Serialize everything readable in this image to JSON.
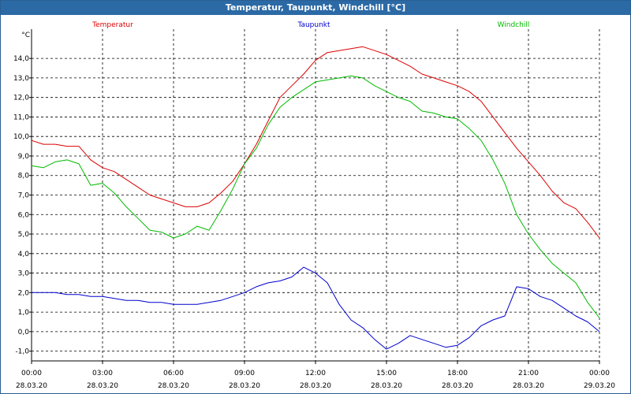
{
  "window": {
    "title": "Temperatur, Taupunkt, Windchill [°C]"
  },
  "chart_data": {
    "type": "line",
    "title": "Temperatur, Taupunkt, Windchill [°C]",
    "ylabel": "°C",
    "ylim": [
      -1.5,
      15.5
    ],
    "yticks": [
      -1.0,
      0.0,
      1.0,
      2.0,
      3.0,
      4.0,
      5.0,
      6.0,
      7.0,
      8.0,
      9.0,
      10.0,
      11.0,
      12.0,
      13.0,
      14.0
    ],
    "ytick_labels": [
      "-1,0",
      "0,0",
      "1,0",
      "2,0",
      "3,0",
      "4,0",
      "5,0",
      "6,0",
      "7,0",
      "8,0",
      "9,0",
      "10,0",
      "11,0",
      "12,0",
      "13,0",
      "14,0"
    ],
    "xlim": [
      0,
      24
    ],
    "xticks": [
      0,
      3,
      6,
      9,
      12,
      15,
      18,
      21,
      24
    ],
    "xtick_labels": [
      {
        "time": "00:00",
        "date": "28.03.20"
      },
      {
        "time": "03:00",
        "date": "28.03.20"
      },
      {
        "time": "06:00",
        "date": "28.03.20"
      },
      {
        "time": "09:00",
        "date": "28.03.20"
      },
      {
        "time": "12:00",
        "date": "28.03.20"
      },
      {
        "time": "15:00",
        "date": "28.03.20"
      },
      {
        "time": "18:00",
        "date": "28.03.20"
      },
      {
        "time": "21:00",
        "date": "28.03.20"
      },
      {
        "time": "00:00",
        "date": "29.03.20"
      }
    ],
    "grid": true,
    "legend_position": "top",
    "series": [
      {
        "name": "Temperatur",
        "color": "#dd0000",
        "x": [
          0,
          0.5,
          1,
          1.5,
          2,
          2.5,
          3,
          3.5,
          4,
          4.5,
          5,
          5.5,
          6,
          6.5,
          7,
          7.5,
          8,
          8.5,
          9,
          9.5,
          10,
          10.5,
          11,
          11.5,
          12,
          12.5,
          13,
          13.5,
          14,
          14.5,
          15,
          15.5,
          16,
          16.5,
          17,
          17.5,
          18,
          18.5,
          19,
          19.5,
          20,
          20.5,
          21,
          21.5,
          22,
          22.5,
          23,
          23.5,
          24
        ],
        "values": [
          9.8,
          9.6,
          9.6,
          9.5,
          9.5,
          8.8,
          8.4,
          8.2,
          7.8,
          7.4,
          7.0,
          6.8,
          6.6,
          6.4,
          6.4,
          6.6,
          7.1,
          7.7,
          8.6,
          9.6,
          10.8,
          12.0,
          12.6,
          13.2,
          13.9,
          14.3,
          14.4,
          14.5,
          14.6,
          14.4,
          14.2,
          13.9,
          13.6,
          13.2,
          13.0,
          12.8,
          12.6,
          12.3,
          11.8,
          11.0,
          10.2,
          9.4,
          8.7,
          8.0,
          7.2,
          6.6,
          6.3,
          5.6,
          4.8
        ]
      },
      {
        "name": "Taupunkt",
        "color": "#0000cc",
        "x": [
          0,
          0.5,
          1,
          1.5,
          2,
          2.5,
          3,
          3.5,
          4,
          4.5,
          5,
          5.5,
          6,
          6.5,
          7,
          7.5,
          8,
          8.5,
          9,
          9.5,
          10,
          10.5,
          11,
          11.5,
          12,
          12.5,
          13,
          13.5,
          14,
          14.5,
          15,
          15.5,
          16,
          16.5,
          17,
          17.5,
          18,
          18.5,
          19,
          19.5,
          20,
          20.5,
          21,
          21.5,
          22,
          22.5,
          23,
          23.5,
          24
        ],
        "values": [
          2.0,
          2.0,
          2.0,
          1.9,
          1.9,
          1.8,
          1.8,
          1.7,
          1.6,
          1.6,
          1.5,
          1.5,
          1.4,
          1.4,
          1.4,
          1.5,
          1.6,
          1.8,
          2.0,
          2.3,
          2.5,
          2.6,
          2.8,
          3.3,
          3.0,
          2.5,
          1.4,
          0.6,
          0.2,
          -0.4,
          -0.9,
          -0.6,
          -0.2,
          -0.4,
          -0.6,
          -0.8,
          -0.7,
          -0.3,
          0.3,
          0.6,
          0.8,
          2.3,
          2.2,
          1.8,
          1.6,
          1.2,
          0.8,
          0.5,
          0.0
        ]
      },
      {
        "name": "Windchill",
        "color": "#00bb00",
        "x": [
          0,
          0.5,
          1,
          1.5,
          2,
          2.5,
          3,
          3.5,
          4,
          4.5,
          5,
          5.5,
          6,
          6.5,
          7,
          7.5,
          8,
          8.5,
          9,
          9.5,
          10,
          10.5,
          11,
          11.5,
          12,
          12.5,
          13,
          13.5,
          14,
          14.5,
          15,
          15.5,
          16,
          16.5,
          17,
          17.5,
          18,
          18.5,
          19,
          19.5,
          20,
          20.5,
          21,
          21.5,
          22,
          22.5,
          23,
          23.5,
          24
        ],
        "values": [
          8.5,
          8.4,
          8.7,
          8.8,
          8.6,
          7.5,
          7.6,
          7.1,
          6.4,
          5.8,
          5.2,
          5.1,
          4.8,
          5.0,
          5.4,
          5.2,
          6.2,
          7.3,
          8.6,
          9.4,
          10.6,
          11.5,
          12.0,
          12.4,
          12.8,
          12.9,
          13.0,
          13.1,
          13.0,
          12.6,
          12.3,
          12.0,
          11.8,
          11.3,
          11.2,
          11.0,
          10.9,
          10.4,
          9.8,
          8.8,
          7.6,
          6.0,
          5.0,
          4.2,
          3.5,
          3.0,
          2.5,
          1.5,
          0.7
        ]
      }
    ]
  }
}
